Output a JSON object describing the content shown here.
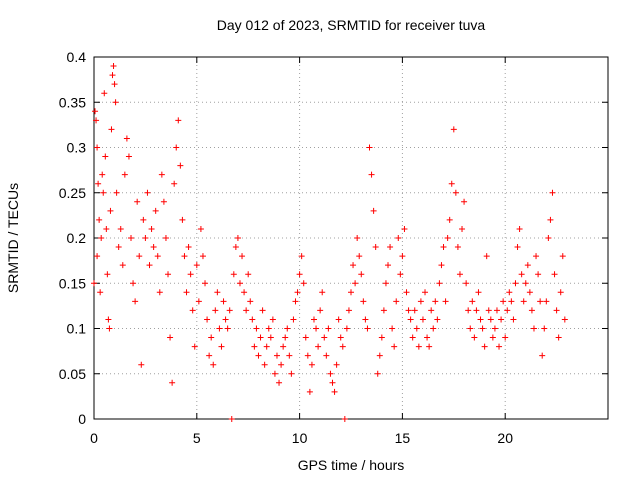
{
  "chart_data": {
    "type": "scatter",
    "title": "Day 012 of 2023, SRMTID for receiver tuva",
    "xlabel": "GPS time / hours",
    "ylabel": "SRMTID / TECUs",
    "xlim": [
      0,
      25
    ],
    "ylim": [
      0,
      0.4
    ],
    "xticks": [
      0,
      5,
      10,
      15,
      20
    ],
    "yticks": [
      0,
      0.05,
      0.1,
      0.15,
      0.2,
      0.25,
      0.3,
      0.35,
      0.4
    ],
    "xtick_labels": [
      "0",
      "5",
      "10",
      "15",
      "20"
    ],
    "ytick_labels": [
      "0",
      "0.05",
      "0.1",
      "0.15",
      "0.2",
      "0.25",
      "0.3",
      "0.35",
      "0.4"
    ],
    "grid": true,
    "marker": "plus",
    "series": [
      {
        "name": "SRMTID",
        "color": "#ff0000",
        "points": [
          [
            0.0,
            0.15
          ],
          [
            0.05,
            0.34
          ],
          [
            0.1,
            0.33
          ],
          [
            0.15,
            0.3
          ],
          [
            0.15,
            0.18
          ],
          [
            0.2,
            0.26
          ],
          [
            0.25,
            0.22
          ],
          [
            0.3,
            0.14
          ],
          [
            0.35,
            0.2
          ],
          [
            0.4,
            0.27
          ],
          [
            0.45,
            0.25
          ],
          [
            0.5,
            0.36
          ],
          [
            0.55,
            0.29
          ],
          [
            0.6,
            0.21
          ],
          [
            0.65,
            0.16
          ],
          [
            0.7,
            0.11
          ],
          [
            0.75,
            0.1
          ],
          [
            0.8,
            0.23
          ],
          [
            0.85,
            0.32
          ],
          [
            0.9,
            0.38
          ],
          [
            0.95,
            0.39
          ],
          [
            1.0,
            0.37
          ],
          [
            1.05,
            0.35
          ],
          [
            1.1,
            0.25
          ],
          [
            1.2,
            0.19
          ],
          [
            1.3,
            0.21
          ],
          [
            1.4,
            0.17
          ],
          [
            1.5,
            0.27
          ],
          [
            1.6,
            0.31
          ],
          [
            1.7,
            0.29
          ],
          [
            1.8,
            0.2
          ],
          [
            1.9,
            0.15
          ],
          [
            2.0,
            0.13
          ],
          [
            2.1,
            0.24
          ],
          [
            2.2,
            0.18
          ],
          [
            2.3,
            0.06
          ],
          [
            2.4,
            0.22
          ],
          [
            2.5,
            0.2
          ],
          [
            2.6,
            0.25
          ],
          [
            2.7,
            0.17
          ],
          [
            2.8,
            0.21
          ],
          [
            2.9,
            0.19
          ],
          [
            3.0,
            0.23
          ],
          [
            3.1,
            0.18
          ],
          [
            3.2,
            0.14
          ],
          [
            3.3,
            0.27
          ],
          [
            3.4,
            0.24
          ],
          [
            3.5,
            0.2
          ],
          [
            3.6,
            0.16
          ],
          [
            3.7,
            0.09
          ],
          [
            3.8,
            0.04
          ],
          [
            3.9,
            0.26
          ],
          [
            4.0,
            0.3
          ],
          [
            4.1,
            0.33
          ],
          [
            4.2,
            0.28
          ],
          [
            4.3,
            0.22
          ],
          [
            4.4,
            0.18
          ],
          [
            4.5,
            0.14
          ],
          [
            4.6,
            0.19
          ],
          [
            4.7,
            0.16
          ],
          [
            4.8,
            0.12
          ],
          [
            4.9,
            0.08
          ],
          [
            5.0,
            0.17
          ],
          [
            5.1,
            0.13
          ],
          [
            5.2,
            0.21
          ],
          [
            5.3,
            0.18
          ],
          [
            5.4,
            0.15
          ],
          [
            5.5,
            0.11
          ],
          [
            5.6,
            0.07
          ],
          [
            5.7,
            0.09
          ],
          [
            5.8,
            0.06
          ],
          [
            5.9,
            0.12
          ],
          [
            6.0,
            0.14
          ],
          [
            6.1,
            0.1
          ],
          [
            6.2,
            0.08
          ],
          [
            6.3,
            0.13
          ],
          [
            6.4,
            0.11
          ],
          [
            6.5,
            0.1
          ],
          [
            6.6,
            0.12
          ],
          [
            6.7,
            0.0
          ],
          [
            6.8,
            0.16
          ],
          [
            6.9,
            0.19
          ],
          [
            7.0,
            0.2
          ],
          [
            7.1,
            0.15
          ],
          [
            7.2,
            0.18
          ],
          [
            7.3,
            0.14
          ],
          [
            7.4,
            0.12
          ],
          [
            7.5,
            0.16
          ],
          [
            7.6,
            0.13
          ],
          [
            7.7,
            0.11
          ],
          [
            7.8,
            0.08
          ],
          [
            7.9,
            0.1
          ],
          [
            8.0,
            0.07
          ],
          [
            8.1,
            0.09
          ],
          [
            8.2,
            0.12
          ],
          [
            8.3,
            0.06
          ],
          [
            8.4,
            0.08
          ],
          [
            8.5,
            0.1
          ],
          [
            8.6,
            0.09
          ],
          [
            8.7,
            0.11
          ],
          [
            8.8,
            0.05
          ],
          [
            8.9,
            0.07
          ],
          [
            9.0,
            0.04
          ],
          [
            9.1,
            0.06
          ],
          [
            9.2,
            0.08
          ],
          [
            9.3,
            0.09
          ],
          [
            9.4,
            0.1
          ],
          [
            9.5,
            0.07
          ],
          [
            9.6,
            0.05
          ],
          [
            9.7,
            0.11
          ],
          [
            9.8,
            0.13
          ],
          [
            9.9,
            0.14
          ],
          [
            10.0,
            0.16
          ],
          [
            10.1,
            0.18
          ],
          [
            10.2,
            0.15
          ],
          [
            10.3,
            0.09
          ],
          [
            10.4,
            0.07
          ],
          [
            10.5,
            0.03
          ],
          [
            10.6,
            0.06
          ],
          [
            10.7,
            0.11
          ],
          [
            10.8,
            0.1
          ],
          [
            10.9,
            0.08
          ],
          [
            11.0,
            0.12
          ],
          [
            11.1,
            0.14
          ],
          [
            11.2,
            0.09
          ],
          [
            11.3,
            0.07
          ],
          [
            11.4,
            0.1
          ],
          [
            11.5,
            0.05
          ],
          [
            11.6,
            0.04
          ],
          [
            11.7,
            0.03
          ],
          [
            11.8,
            0.06
          ],
          [
            11.9,
            0.11
          ],
          [
            12.0,
            0.09
          ],
          [
            12.1,
            0.08
          ],
          [
            12.2,
            0.0
          ],
          [
            12.3,
            0.1
          ],
          [
            12.4,
            0.12
          ],
          [
            12.5,
            0.14
          ],
          [
            12.6,
            0.17
          ],
          [
            12.7,
            0.15
          ],
          [
            12.8,
            0.2
          ],
          [
            12.9,
            0.18
          ],
          [
            13.0,
            0.16
          ],
          [
            13.1,
            0.13
          ],
          [
            13.2,
            0.11
          ],
          [
            13.3,
            0.1
          ],
          [
            13.4,
            0.3
          ],
          [
            13.5,
            0.27
          ],
          [
            13.6,
            0.23
          ],
          [
            13.7,
            0.19
          ],
          [
            13.8,
            0.05
          ],
          [
            13.9,
            0.07
          ],
          [
            14.0,
            0.09
          ],
          [
            14.1,
            0.12
          ],
          [
            14.2,
            0.15
          ],
          [
            14.3,
            0.17
          ],
          [
            14.4,
            0.19
          ],
          [
            14.5,
            0.1
          ],
          [
            14.6,
            0.08
          ],
          [
            14.7,
            0.13
          ],
          [
            14.8,
            0.2
          ],
          [
            14.9,
            0.16
          ],
          [
            15.0,
            0.18
          ],
          [
            15.1,
            0.21
          ],
          [
            15.2,
            0.14
          ],
          [
            15.3,
            0.12
          ],
          [
            15.4,
            0.11
          ],
          [
            15.5,
            0.09
          ],
          [
            15.6,
            0.12
          ],
          [
            15.7,
            0.1
          ],
          [
            15.8,
            0.08
          ],
          [
            15.9,
            0.13
          ],
          [
            16.0,
            0.11
          ],
          [
            16.1,
            0.14
          ],
          [
            16.2,
            0.09
          ],
          [
            16.3,
            0.08
          ],
          [
            16.4,
            0.12
          ],
          [
            16.5,
            0.1
          ],
          [
            16.6,
            0.13
          ],
          [
            16.7,
            0.11
          ],
          [
            16.8,
            0.15
          ],
          [
            16.9,
            0.17
          ],
          [
            17.0,
            0.19
          ],
          [
            17.1,
            0.13
          ],
          [
            17.2,
            0.2
          ],
          [
            17.3,
            0.22
          ],
          [
            17.4,
            0.26
          ],
          [
            17.5,
            0.32
          ],
          [
            17.6,
            0.25
          ],
          [
            17.7,
            0.19
          ],
          [
            17.8,
            0.16
          ],
          [
            17.9,
            0.21
          ],
          [
            18.0,
            0.24
          ],
          [
            18.1,
            0.15
          ],
          [
            18.2,
            0.12
          ],
          [
            18.3,
            0.1
          ],
          [
            18.4,
            0.13
          ],
          [
            18.5,
            0.09
          ],
          [
            18.6,
            0.12
          ],
          [
            18.7,
            0.14
          ],
          [
            18.8,
            0.11
          ],
          [
            18.9,
            0.1
          ],
          [
            19.0,
            0.08
          ],
          [
            19.1,
            0.18
          ],
          [
            19.2,
            0.12
          ],
          [
            19.3,
            0.11
          ],
          [
            19.4,
            0.09
          ],
          [
            19.5,
            0.1
          ],
          [
            19.6,
            0.12
          ],
          [
            19.7,
            0.08
          ],
          [
            19.8,
            0.11
          ],
          [
            19.9,
            0.13
          ],
          [
            20.0,
            0.09
          ],
          [
            20.1,
            0.12
          ],
          [
            20.2,
            0.14
          ],
          [
            20.3,
            0.13
          ],
          [
            20.4,
            0.11
          ],
          [
            20.5,
            0.15
          ],
          [
            20.6,
            0.19
          ],
          [
            20.7,
            0.21
          ],
          [
            20.8,
            0.16
          ],
          [
            20.9,
            0.13
          ],
          [
            21.0,
            0.15
          ],
          [
            21.1,
            0.17
          ],
          [
            21.2,
            0.14
          ],
          [
            21.3,
            0.12
          ],
          [
            21.4,
            0.1
          ],
          [
            21.5,
            0.18
          ],
          [
            21.6,
            0.16
          ],
          [
            21.7,
            0.13
          ],
          [
            21.8,
            0.07
          ],
          [
            21.9,
            0.1
          ],
          [
            22.0,
            0.13
          ],
          [
            22.1,
            0.2
          ],
          [
            22.2,
            0.22
          ],
          [
            22.3,
            0.25
          ],
          [
            22.4,
            0.16
          ],
          [
            22.5,
            0.12
          ],
          [
            22.6,
            0.09
          ],
          [
            22.7,
            0.14
          ],
          [
            22.8,
            0.18
          ],
          [
            22.9,
            0.11
          ]
        ]
      }
    ]
  }
}
